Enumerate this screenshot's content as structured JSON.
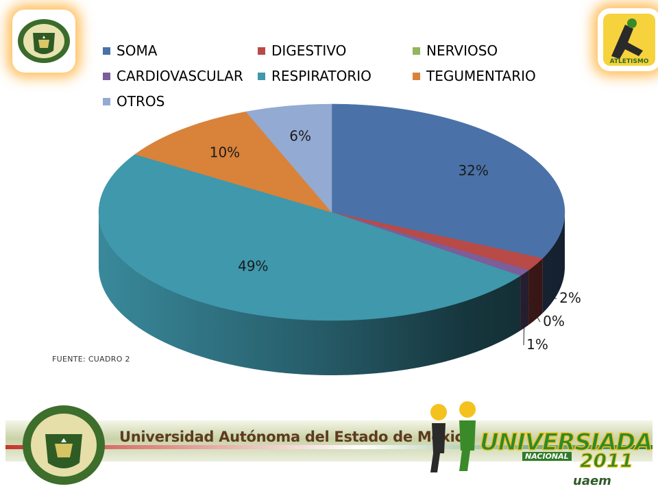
{
  "chart_data": {
    "type": "pie",
    "style": "3d",
    "categories": [
      "SOMA",
      "DIGESTIVO",
      "NERVIOSO",
      "CARDIOVASCULAR",
      "RESPIRATORIO",
      "TEGUMENTARIO",
      "OTROS"
    ],
    "values": [
      32,
      2,
      0,
      1,
      49,
      10,
      6
    ],
    "data_labels": [
      "32%",
      "2%",
      "0%",
      "1%",
      "49%",
      "10%",
      "6%"
    ],
    "colors": [
      "#4a72a8",
      "#b84a47",
      "#93b55b",
      "#7b5e9a",
      "#3f98ac",
      "#d9823a",
      "#93aad3"
    ],
    "legend_position": "top",
    "title": "",
    "xlabel": "",
    "ylabel": ""
  },
  "source_note": "FUENTE: CUADRO 2",
  "banner": {
    "university_name": "Universidad Autónoma del Estado de México",
    "event_name": "UNIVERSIADA",
    "event_sub": "NACIONAL",
    "event_year": "2011",
    "host": "uaem"
  },
  "logos": {
    "left": "uaem-shield-icon",
    "right": "atletismo-logo-icon",
    "right_text": "ATLETISMO"
  }
}
